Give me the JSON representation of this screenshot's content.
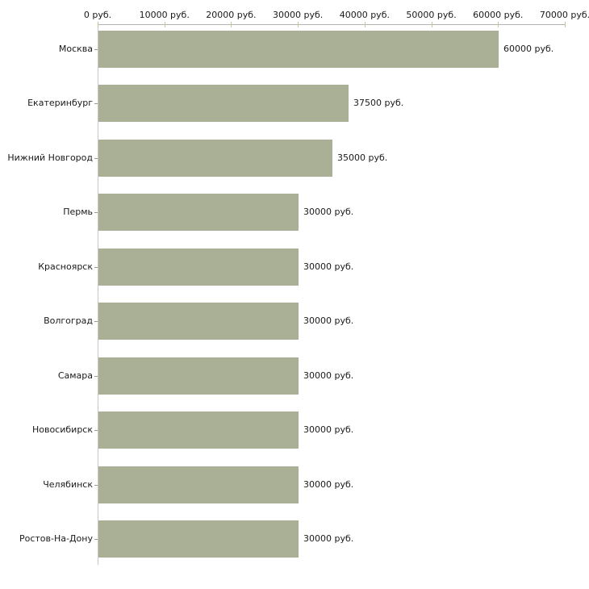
{
  "chart_data": {
    "type": "bar",
    "orientation": "horizontal",
    "title": "",
    "xlabel": "",
    "ylabel": "",
    "grid": false,
    "legend": false,
    "categories": [
      "Москва",
      "Екатеринбург",
      "Нижний Новгород",
      "Пермь",
      "Красноярск",
      "Волгоград",
      "Самара",
      "Новосибирск",
      "Челябинск",
      "Ростов-На-Дону"
    ],
    "values": [
      60000,
      37500,
      35000,
      30000,
      30000,
      30000,
      30000,
      30000,
      30000,
      30000
    ],
    "value_labels": [
      "60000 руб.",
      "37500 руб.",
      "35000 руб.",
      "30000 руб.",
      "30000 руб.",
      "30000 руб.",
      "30000 руб.",
      "30000 руб.",
      "30000 руб.",
      "30000 руб."
    ],
    "unit": "руб.",
    "x_axis": {
      "position": "top",
      "xlim": [
        0,
        70000
      ],
      "ticks": [
        0,
        10000,
        20000,
        30000,
        40000,
        50000,
        60000,
        70000
      ],
      "tick_labels": [
        "0 руб.",
        "10000 руб.",
        "20000 руб.",
        "30000 руб.",
        "40000 руб.",
        "50000 руб.",
        "60000 руб.",
        "70000 руб."
      ]
    }
  },
  "colors": {
    "background": "#ffffff",
    "bar": "#a9b095",
    "x_axis_line": "#b3b3b3",
    "x_tick": "#c6c69a",
    "y_axis_line": "#c6c6c6",
    "y_tick": "#9a9a8f",
    "text": "#1a1a1a"
  }
}
